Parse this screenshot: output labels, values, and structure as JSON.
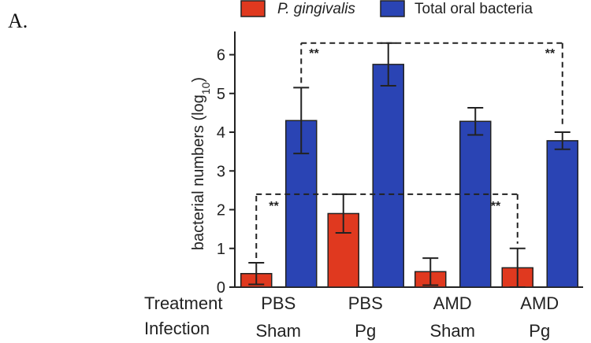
{
  "panel_label": "A.",
  "colors": {
    "pg": "#e0391f",
    "total": "#2a44b4",
    "axis": "#222222"
  },
  "chart_data": {
    "type": "bar",
    "title": "",
    "xlabel": "",
    "ylabel": "bacterial numbers (log10)",
    "ylabel_main": "bacterial numbers (log",
    "ylabel_sub": "10",
    "ylabel_close": ")",
    "ylim": [
      0,
      6.6
    ],
    "yticks": [
      "0",
      "1",
      "2",
      "3",
      "4",
      "5",
      "6"
    ],
    "row_labels": {
      "treatment": "Treatment",
      "infection": "Infection"
    },
    "categories": [
      {
        "treatment": "PBS",
        "infection": "Sham"
      },
      {
        "treatment": "PBS",
        "infection": "Pg"
      },
      {
        "treatment": "AMD",
        "infection": "Sham"
      },
      {
        "treatment": "AMD",
        "infection": "Pg"
      }
    ],
    "series": [
      {
        "name": "P. gingivalis",
        "values": [
          0.35,
          1.9,
          0.4,
          0.5
        ],
        "errors": [
          0.28,
          0.5,
          0.35,
          0.5
        ]
      },
      {
        "name": "Total oral bacteria",
        "values": [
          4.3,
          5.75,
          4.28,
          3.78
        ],
        "errors": [
          0.85,
          0.55,
          0.35,
          0.22
        ]
      }
    ],
    "legend": "top",
    "significance": [
      {
        "label": "**",
        "series": "P. gingivalis",
        "from": 0,
        "to": 3
      },
      {
        "label": "**",
        "series": "Total oral bacteria",
        "from": 0,
        "to": 3
      }
    ]
  }
}
